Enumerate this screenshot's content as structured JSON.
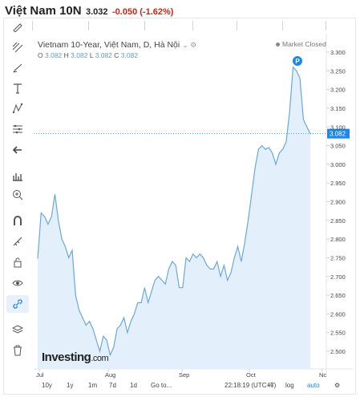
{
  "header": {
    "title": "Việt Nam 10N",
    "price": "3.032",
    "change": "-0.050 (-1.62%)"
  },
  "chart_header": {
    "legend_title": "Vietnam 10-Year, Việt Nam, D, Hà Nội",
    "ohlc": [
      {
        "label": "O",
        "value": "3.082"
      },
      {
        "label": "H",
        "value": "3.082"
      },
      {
        "label": "L",
        "value": "3.082"
      },
      {
        "label": "C",
        "value": "3.082"
      }
    ],
    "market_status": "Market Closed",
    "event_badge": "P",
    "logo_text": "Investing",
    "logo_suffix": ".com"
  },
  "toolbar": {
    "icons": [
      "pencil-icon",
      "multi-line-icon",
      "brush-icon",
      "text-icon",
      "pattern-icon",
      "measure-icon",
      "back-arrow-icon",
      "chart-settings-icon",
      "zoom-icon",
      "magnet-icon",
      "ruler-icon",
      "lock-icon",
      "eye-icon",
      "link-icon",
      "layers-icon",
      "trash-icon"
    ],
    "selected": "link-icon"
  },
  "bottom_bar": {
    "periods": [
      "10y",
      "1y",
      "1m",
      "7d",
      "1d"
    ],
    "goto": "Go to...",
    "clock": "22:18:19 (UTC+7)",
    "percent": "%",
    "log": "log",
    "auto": "auto"
  },
  "chart_data": {
    "type": "area",
    "title": "",
    "xlabel": "",
    "ylabel": "",
    "x_tick_labels": [
      "Jul",
      "Aug",
      "Sep",
      "Oct",
      "Nc"
    ],
    "y_tick_labels": [
      "3.300",
      "3.250",
      "3.200",
      "3.150",
      "3.100",
      "3.050",
      "3.000",
      "2.950",
      "2.900",
      "2.850",
      "2.800",
      "2.750",
      "2.700",
      "2.650",
      "2.600",
      "2.550",
      "2.500"
    ],
    "ylim": [
      2.47,
      3.32
    ],
    "current_price_label": "3.082",
    "current_price": 3.082,
    "grid": false,
    "series": [
      {
        "values": [
          2.748,
          2.87,
          2.86,
          2.84,
          2.86,
          2.92,
          2.85,
          2.8,
          2.78,
          2.75,
          2.77,
          2.65,
          2.61,
          2.59,
          2.57,
          2.58,
          2.56,
          2.53,
          2.5,
          2.54,
          2.53,
          2.49,
          2.51,
          2.56,
          2.57,
          2.59,
          2.55,
          2.58,
          2.6,
          2.63,
          2.63,
          2.67,
          2.63,
          2.66,
          2.69,
          2.7,
          2.69,
          2.68,
          2.72,
          2.74,
          2.73,
          2.67,
          2.67,
          2.75,
          2.74,
          2.76,
          2.75,
          2.76,
          2.75,
          2.73,
          2.72,
          2.72,
          2.74,
          2.7,
          2.73,
          2.69,
          2.71,
          2.75,
          2.78,
          2.74,
          2.79,
          2.85,
          2.92,
          2.99,
          3.04,
          3.05,
          3.04,
          3.045,
          3.03,
          3.0,
          3.03,
          3.04,
          3.06,
          3.14,
          3.26,
          3.25,
          3.23,
          3.12,
          3.1,
          3.082
        ]
      }
    ]
  }
}
